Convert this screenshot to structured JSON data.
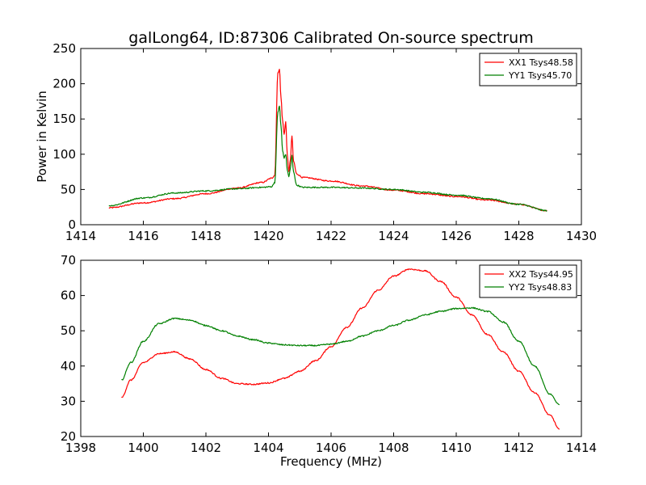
{
  "chart_data": [
    {
      "type": "line",
      "title": "galLong64, ID:87306 Calibrated On-source spectrum",
      "xlabel": "",
      "ylabel": "Power in Kelvin",
      "xlim": [
        1414,
        1430
      ],
      "ylim": [
        0,
        250
      ],
      "xticks": [
        "1414",
        "1416",
        "1418",
        "1420",
        "1422",
        "1424",
        "1426",
        "1428",
        "1430"
      ],
      "yticks": [
        "0",
        "50",
        "100",
        "150",
        "200",
        "250"
      ],
      "grid": false,
      "legend_position": "top-right",
      "series": [
        {
          "name": "XX1 Tsys48.58",
          "color": "#ff0000",
          "x": [
            1414.9,
            1416.0,
            1417.0,
            1418.0,
            1419.0,
            1419.8,
            1420.1,
            1420.2,
            1420.3,
            1420.35,
            1420.4,
            1420.45,
            1420.5,
            1420.55,
            1420.6,
            1420.65,
            1420.7,
            1420.75,
            1420.8,
            1420.9,
            1421.1,
            1422.0,
            1423.0,
            1424.0,
            1425.0,
            1426.0,
            1427.0,
            1428.0,
            1428.9
          ],
          "y": [
            24,
            31,
            37,
            44,
            52,
            60,
            66,
            70,
            215,
            221,
            180,
            148,
            128,
            146,
            100,
            75,
            93,
            126,
            90,
            72,
            67,
            62,
            55,
            49,
            44,
            40,
            35,
            29,
            20
          ]
        },
        {
          "name": "YY1 Tsys45.70",
          "color": "#008000",
          "x": [
            1414.9,
            1416.0,
            1417.0,
            1418.0,
            1419.0,
            1419.8,
            1420.1,
            1420.2,
            1420.3,
            1420.35,
            1420.4,
            1420.45,
            1420.5,
            1420.55,
            1420.6,
            1420.65,
            1420.7,
            1420.75,
            1420.8,
            1420.9,
            1421.1,
            1422.0,
            1423.0,
            1424.0,
            1425.0,
            1426.0,
            1427.0,
            1428.0,
            1428.9
          ],
          "y": [
            27,
            38,
            45,
            48,
            51,
            53,
            54,
            60,
            160,
            168,
            140,
            105,
            95,
            100,
            78,
            68,
            80,
            98,
            75,
            56,
            53,
            53,
            52,
            50,
            46,
            42,
            37,
            29,
            20
          ]
        }
      ]
    },
    {
      "type": "line",
      "title": "",
      "xlabel": "Frequency (MHz)",
      "ylabel": "",
      "xlim": [
        1398,
        1414
      ],
      "ylim": [
        20,
        70
      ],
      "xticks": [
        "1398",
        "1400",
        "1402",
        "1404",
        "1406",
        "1408",
        "1410",
        "1412",
        "1414"
      ],
      "yticks": [
        "20",
        "30",
        "40",
        "50",
        "60",
        "70"
      ],
      "grid": false,
      "legend_position": "top-right",
      "series": [
        {
          "name": "XX2 Tsys44.95",
          "color": "#ff0000",
          "x": [
            1399.3,
            1399.6,
            1400.0,
            1400.5,
            1401.0,
            1401.5,
            1402.0,
            1402.5,
            1403.0,
            1403.5,
            1404.0,
            1404.5,
            1405.0,
            1405.5,
            1406.0,
            1406.5,
            1407.0,
            1407.5,
            1408.0,
            1408.5,
            1409.0,
            1409.5,
            1410.0,
            1410.5,
            1411.0,
            1411.5,
            1412.0,
            1412.5,
            1413.0,
            1413.3
          ],
          "y": [
            31,
            36,
            41,
            43.5,
            44,
            42,
            39,
            36.5,
            35,
            34.8,
            35.2,
            36.5,
            38.5,
            41.5,
            45.5,
            51,
            56.5,
            61.5,
            65.5,
            67.5,
            67,
            64,
            59.5,
            54.5,
            49,
            44,
            38.5,
            32.5,
            26,
            22
          ]
        },
        {
          "name": "YY2 Tsys48.83",
          "color": "#008000",
          "x": [
            1399.3,
            1399.6,
            1400.0,
            1400.5,
            1401.0,
            1401.5,
            1402.0,
            1402.5,
            1403.0,
            1403.5,
            1404.0,
            1404.5,
            1405.0,
            1405.5,
            1406.0,
            1406.5,
            1407.0,
            1407.5,
            1408.0,
            1408.5,
            1409.0,
            1409.5,
            1410.0,
            1410.5,
            1411.0,
            1411.5,
            1412.0,
            1412.5,
            1413.0,
            1413.3
          ],
          "y": [
            36,
            41,
            47,
            52,
            53.5,
            53,
            51.5,
            50,
            48.5,
            47.5,
            46.5,
            46,
            45.8,
            45.8,
            46.2,
            47,
            48.5,
            50,
            51.5,
            53,
            54.5,
            55.5,
            56.3,
            56.5,
            55.5,
            52.5,
            47,
            40,
            32,
            29
          ]
        }
      ]
    }
  ]
}
